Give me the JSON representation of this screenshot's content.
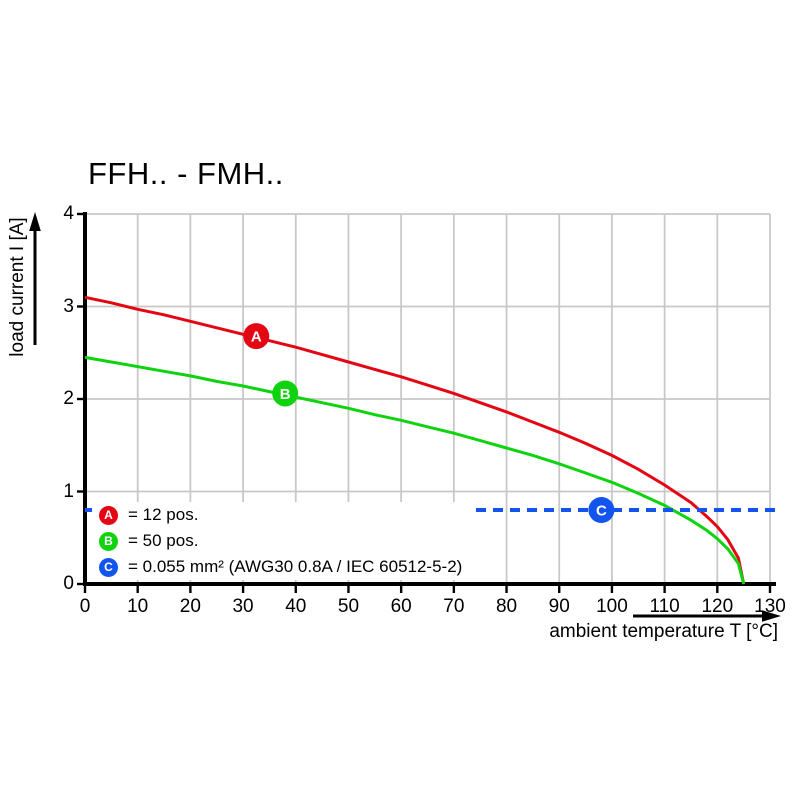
{
  "title": "FFH.. - FMH..",
  "chart_data": {
    "type": "line",
    "title": "FFH.. - FMH..",
    "xlabel": "ambient temperature T [°C]",
    "ylabel": "load current I [A]",
    "xlim": [
      0,
      130
    ],
    "ylim": [
      0,
      4
    ],
    "xticks": [
      0,
      10,
      20,
      30,
      40,
      50,
      60,
      70,
      80,
      90,
      100,
      110,
      120,
      130
    ],
    "yticks": [
      0,
      1,
      2,
      3,
      4
    ],
    "grid": true,
    "grid_color": "#c8c8c8",
    "axis_color": "#000000",
    "legend_position": "inside-bottom-left",
    "series": [
      {
        "marker_letter": "A",
        "legend_label": "= 12 pos.",
        "color": "#e30613",
        "style": "solid",
        "marker": {
          "x": 32.5,
          "y": 2.68
        },
        "x": [
          0,
          5,
          10,
          15,
          20,
          25,
          30,
          35,
          40,
          45,
          50,
          55,
          60,
          65,
          70,
          75,
          80,
          85,
          90,
          95,
          100,
          105,
          110,
          115,
          118,
          120,
          122,
          124,
          125
        ],
        "y": [
          3.1,
          3.04,
          2.97,
          2.91,
          2.84,
          2.77,
          2.7,
          2.63,
          2.56,
          2.48,
          2.4,
          2.32,
          2.24,
          2.15,
          2.06,
          1.96,
          1.86,
          1.75,
          1.64,
          1.52,
          1.39,
          1.24,
          1.07,
          0.88,
          0.73,
          0.62,
          0.48,
          0.28,
          0
        ]
      },
      {
        "marker_letter": "B",
        "legend_label": "= 50 pos.",
        "color": "#0fd30f",
        "style": "solid",
        "marker": {
          "x": 38,
          "y": 2.06
        },
        "x": [
          0,
          5,
          10,
          15,
          20,
          25,
          30,
          35,
          40,
          45,
          50,
          55,
          60,
          65,
          70,
          75,
          80,
          85,
          90,
          95,
          100,
          105,
          110,
          115,
          118,
          120,
          122,
          124,
          125
        ],
        "y": [
          2.45,
          2.4,
          2.35,
          2.3,
          2.25,
          2.19,
          2.14,
          2.08,
          2.02,
          1.96,
          1.9,
          1.83,
          1.77,
          1.7,
          1.63,
          1.55,
          1.47,
          1.39,
          1.3,
          1.2,
          1.1,
          0.98,
          0.85,
          0.69,
          0.58,
          0.49,
          0.38,
          0.22,
          0
        ]
      },
      {
        "marker_letter": "C",
        "legend_label": "= 0.055 mm² (AWG30 0.8A / IEC 60512-5-2)",
        "color": "#1254ed",
        "style": "dashed",
        "marker": {
          "x": 98,
          "y": 0.8
        },
        "x": [
          0,
          131
        ],
        "y": [
          0.8,
          0.8
        ]
      }
    ]
  }
}
